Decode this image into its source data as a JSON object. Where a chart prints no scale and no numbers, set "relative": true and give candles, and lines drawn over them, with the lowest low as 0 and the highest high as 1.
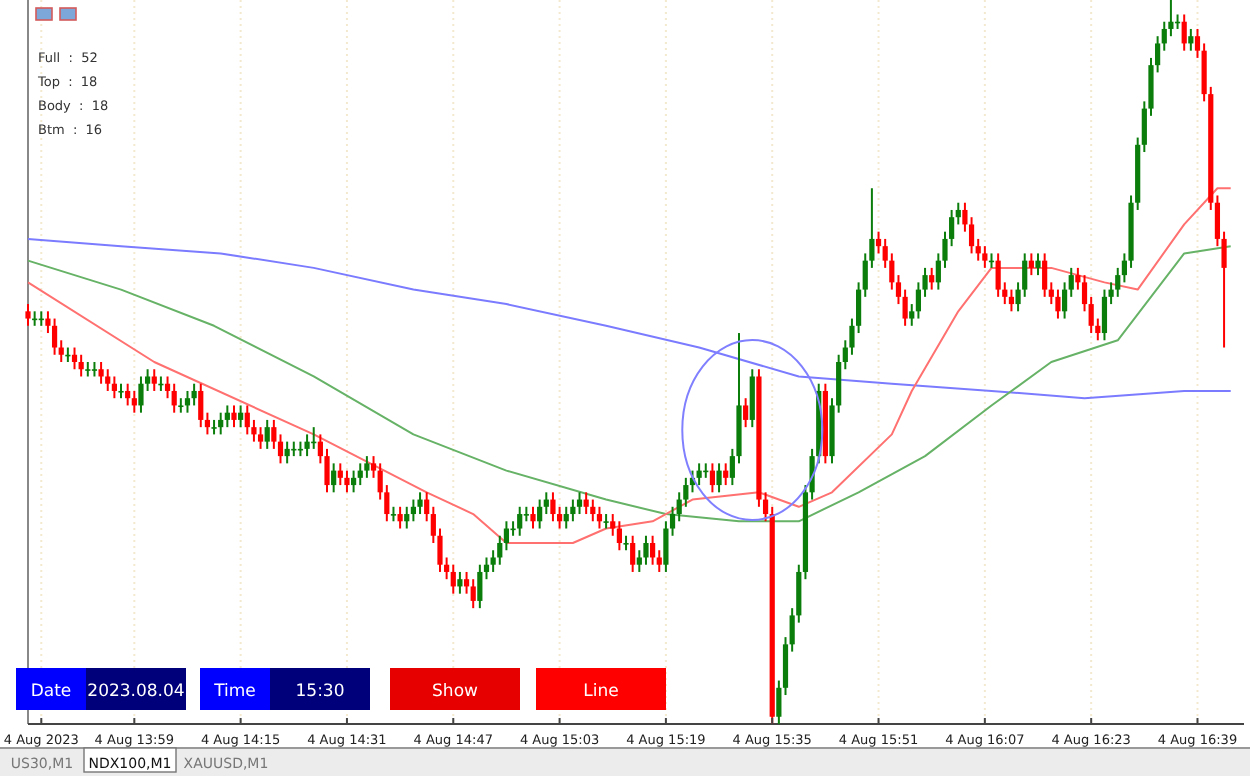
{
  "chart_data": {
    "type": "candlestick",
    "relative": true,
    "grid": "x",
    "tick_labels": "x",
    "annotations": [
      "Full  :  52",
      "Top  :  18",
      "Body  :  18",
      "Btm  :  16",
      "Date",
      "2023.08.04",
      "Time",
      "15:30",
      "Show",
      "Line",
      "US30,M1",
      "NDX100,M1",
      "XAUUSD,M1"
    ],
    "xlim": [
      "2023-08-04T13:43",
      "2023-08-04T16:46"
    ],
    "xticks": [
      {
        "value": "2023-08-04T13:45",
        "label": "4 Aug 2023"
      },
      {
        "value": "2023-08-04T13:59",
        "label": "4 Aug 13:59"
      },
      {
        "value": "2023-08-04T14:15",
        "label": "4 Aug 14:15"
      },
      {
        "value": "2023-08-04T14:31",
        "label": "4 Aug 14:31"
      },
      {
        "value": "2023-08-04T14:47",
        "label": "4 Aug 14:47"
      },
      {
        "value": "2023-08-04T15:03",
        "label": "4 Aug 15:03"
      },
      {
        "value": "2023-08-04T15:19",
        "label": "4 Aug 15:19"
      },
      {
        "value": "2023-08-04T15:35",
        "label": "4 Aug 15:35"
      },
      {
        "value": "2023-08-04T15:51",
        "label": "4 Aug 15:51"
      },
      {
        "value": "2023-08-04T16:07",
        "label": "4 Aug 16:07"
      },
      {
        "value": "2023-08-04T16:23",
        "label": "4 Aug 16:23"
      },
      {
        "value": "2023-08-04T16:39",
        "label": "4 Aug 16:39"
      }
    ],
    "x": [
      "2023-08-04T13:43",
      "2023-08-04T13:44",
      "2023-08-04T13:45",
      "2023-08-04T13:46",
      "2023-08-04T13:47",
      "2023-08-04T13:48",
      "2023-08-04T13:49",
      "2023-08-04T13:50",
      "2023-08-04T13:51",
      "2023-08-04T13:52",
      "2023-08-04T13:53",
      "2023-08-04T13:54",
      "2023-08-04T13:55",
      "2023-08-04T13:56",
      "2023-08-04T13:57",
      "2023-08-04T13:58",
      "2023-08-04T13:59",
      "2023-08-04T14:00",
      "2023-08-04T14:01",
      "2023-08-04T14:02",
      "2023-08-04T14:03",
      "2023-08-04T14:04",
      "2023-08-04T14:05",
      "2023-08-04T14:06",
      "2023-08-04T14:07",
      "2023-08-04T14:08",
      "2023-08-04T14:09",
      "2023-08-04T14:10",
      "2023-08-04T14:11",
      "2023-08-04T14:12",
      "2023-08-04T14:13",
      "2023-08-04T14:14",
      "2023-08-04T14:15",
      "2023-08-04T14:16",
      "2023-08-04T14:17",
      "2023-08-04T14:18",
      "2023-08-04T14:19",
      "2023-08-04T14:20",
      "2023-08-04T14:21",
      "2023-08-04T14:22",
      "2023-08-04T14:23",
      "2023-08-04T14:24",
      "2023-08-04T14:25",
      "2023-08-04T14:26",
      "2023-08-04T14:27",
      "2023-08-04T14:28",
      "2023-08-04T14:29",
      "2023-08-04T14:30",
      "2023-08-04T14:31",
      "2023-08-04T14:32",
      "2023-08-04T14:33",
      "2023-08-04T14:34",
      "2023-08-04T14:35",
      "2023-08-04T14:36",
      "2023-08-04T14:37",
      "2023-08-04T14:38",
      "2023-08-04T14:39",
      "2023-08-04T14:40",
      "2023-08-04T14:41",
      "2023-08-04T14:42",
      "2023-08-04T14:43",
      "2023-08-04T14:44",
      "2023-08-04T14:45",
      "2023-08-04T14:46",
      "2023-08-04T14:47",
      "2023-08-04T14:48",
      "2023-08-04T14:49",
      "2023-08-04T14:50",
      "2023-08-04T14:51",
      "2023-08-04T14:52",
      "2023-08-04T14:53",
      "2023-08-04T14:54",
      "2023-08-04T14:55",
      "2023-08-04T14:56",
      "2023-08-04T14:57",
      "2023-08-04T14:58",
      "2023-08-04T14:59",
      "2023-08-04T15:00",
      "2023-08-04T15:01",
      "2023-08-04T15:02",
      "2023-08-04T15:03",
      "2023-08-04T15:04",
      "2023-08-04T15:05",
      "2023-08-04T15:06",
      "2023-08-04T15:07",
      "2023-08-04T15:08",
      "2023-08-04T15:09",
      "2023-08-04T15:10",
      "2023-08-04T15:11",
      "2023-08-04T15:12",
      "2023-08-04T15:13",
      "2023-08-04T15:14",
      "2023-08-04T15:15",
      "2023-08-04T15:16",
      "2023-08-04T15:17",
      "2023-08-04T15:18",
      "2023-08-04T15:19",
      "2023-08-04T15:20",
      "2023-08-04T15:21",
      "2023-08-04T15:22",
      "2023-08-04T15:23",
      "2023-08-04T15:24",
      "2023-08-04T15:25",
      "2023-08-04T15:26",
      "2023-08-04T15:27",
      "2023-08-04T15:28",
      "2023-08-04T15:29",
      "2023-08-04T15:30",
      "2023-08-04T15:31",
      "2023-08-04T15:32",
      "2023-08-04T15:33",
      "2023-08-04T15:34",
      "2023-08-04T15:35",
      "2023-08-04T15:36",
      "2023-08-04T15:37",
      "2023-08-04T15:38",
      "2023-08-04T15:39",
      "2023-08-04T15:40",
      "2023-08-04T15:41",
      "2023-08-04T15:42",
      "2023-08-04T15:43",
      "2023-08-04T15:44",
      "2023-08-04T15:45",
      "2023-08-04T15:46",
      "2023-08-04T15:47",
      "2023-08-04T15:48",
      "2023-08-04T15:49",
      "2023-08-04T15:50",
      "2023-08-04T15:51",
      "2023-08-04T15:52",
      "2023-08-04T15:53",
      "2023-08-04T15:54",
      "2023-08-04T15:55",
      "2023-08-04T15:56",
      "2023-08-04T15:57",
      "2023-08-04T15:58",
      "2023-08-04T15:59",
      "2023-08-04T16:00",
      "2023-08-04T16:01",
      "2023-08-04T16:02",
      "2023-08-04T16:03",
      "2023-08-04T16:04",
      "2023-08-04T16:05",
      "2023-08-04T16:06",
      "2023-08-04T16:07",
      "2023-08-04T16:08",
      "2023-08-04T16:09",
      "2023-08-04T16:10",
      "2023-08-04T16:11",
      "2023-08-04T16:12",
      "2023-08-04T16:13",
      "2023-08-04T16:14",
      "2023-08-04T16:15",
      "2023-08-04T16:16",
      "2023-08-04T16:17",
      "2023-08-04T16:18",
      "2023-08-04T16:19",
      "2023-08-04T16:20",
      "2023-08-04T16:21",
      "2023-08-04T16:22",
      "2023-08-04T16:23",
      "2023-08-04T16:24",
      "2023-08-04T16:25",
      "2023-08-04T16:26",
      "2023-08-04T16:27",
      "2023-08-04T16:28",
      "2023-08-04T16:29",
      "2023-08-04T16:30",
      "2023-08-04T16:31",
      "2023-08-04T16:32",
      "2023-08-04T16:33",
      "2023-08-04T16:34",
      "2023-08-04T16:35",
      "2023-08-04T16:36",
      "2023-08-04T16:37",
      "2023-08-04T16:38",
      "2023-08-04T16:39",
      "2023-08-04T16:40",
      "2023-08-04T16:41",
      "2023-08-04T16:42",
      "2023-08-04T16:43"
    ],
    "ohlc": [
      [
        0.57,
        0.58,
        0.55,
        0.56
      ],
      [
        0.56,
        0.57,
        0.55,
        0.56
      ],
      [
        0.56,
        0.57,
        0.55,
        0.56
      ],
      [
        0.56,
        0.57,
        0.54,
        0.55
      ],
      [
        0.55,
        0.56,
        0.51,
        0.52
      ],
      [
        0.52,
        0.53,
        0.5,
        0.51
      ],
      [
        0.51,
        0.52,
        0.5,
        0.51
      ],
      [
        0.51,
        0.52,
        0.49,
        0.5
      ],
      [
        0.5,
        0.51,
        0.48,
        0.49
      ],
      [
        0.49,
        0.5,
        0.48,
        0.49
      ],
      [
        0.49,
        0.5,
        0.48,
        0.49
      ],
      [
        0.49,
        0.5,
        0.47,
        0.48
      ],
      [
        0.48,
        0.49,
        0.46,
        0.47
      ],
      [
        0.47,
        0.48,
        0.45,
        0.46
      ],
      [
        0.46,
        0.47,
        0.45,
        0.46
      ],
      [
        0.46,
        0.47,
        0.44,
        0.45
      ],
      [
        0.45,
        0.46,
        0.43,
        0.44
      ],
      [
        0.44,
        0.48,
        0.43,
        0.47
      ],
      [
        0.47,
        0.49,
        0.46,
        0.48
      ],
      [
        0.48,
        0.49,
        0.46,
        0.47
      ],
      [
        0.47,
        0.48,
        0.46,
        0.47
      ],
      [
        0.47,
        0.48,
        0.45,
        0.46
      ],
      [
        0.46,
        0.47,
        0.43,
        0.44
      ],
      [
        0.44,
        0.45,
        0.43,
        0.44
      ],
      [
        0.44,
        0.46,
        0.43,
        0.45
      ],
      [
        0.45,
        0.47,
        0.44,
        0.46
      ],
      [
        0.46,
        0.47,
        0.41,
        0.42
      ],
      [
        0.42,
        0.43,
        0.4,
        0.41
      ],
      [
        0.41,
        0.42,
        0.4,
        0.41
      ],
      [
        0.41,
        0.43,
        0.4,
        0.42
      ],
      [
        0.42,
        0.44,
        0.41,
        0.43
      ],
      [
        0.43,
        0.44,
        0.41,
        0.42
      ],
      [
        0.42,
        0.44,
        0.41,
        0.43
      ],
      [
        0.43,
        0.44,
        0.4,
        0.41
      ],
      [
        0.41,
        0.42,
        0.39,
        0.4
      ],
      [
        0.4,
        0.41,
        0.38,
        0.39
      ],
      [
        0.39,
        0.42,
        0.38,
        0.41
      ],
      [
        0.41,
        0.42,
        0.38,
        0.39
      ],
      [
        0.39,
        0.4,
        0.36,
        0.37
      ],
      [
        0.37,
        0.39,
        0.36,
        0.38
      ],
      [
        0.38,
        0.39,
        0.37,
        0.38
      ],
      [
        0.38,
        0.39,
        0.37,
        0.38
      ],
      [
        0.38,
        0.4,
        0.37,
        0.39
      ],
      [
        0.39,
        0.41,
        0.38,
        0.39
      ],
      [
        0.39,
        0.4,
        0.36,
        0.37
      ],
      [
        0.37,
        0.38,
        0.32,
        0.33
      ],
      [
        0.33,
        0.36,
        0.32,
        0.35
      ],
      [
        0.35,
        0.36,
        0.33,
        0.34
      ],
      [
        0.34,
        0.35,
        0.32,
        0.33
      ],
      [
        0.33,
        0.35,
        0.32,
        0.34
      ],
      [
        0.34,
        0.36,
        0.33,
        0.35
      ],
      [
        0.35,
        0.37,
        0.34,
        0.36
      ],
      [
        0.36,
        0.37,
        0.34,
        0.35
      ],
      [
        0.35,
        0.36,
        0.31,
        0.32
      ],
      [
        0.32,
        0.33,
        0.28,
        0.29
      ],
      [
        0.29,
        0.3,
        0.28,
        0.29
      ],
      [
        0.29,
        0.3,
        0.27,
        0.28
      ],
      [
        0.28,
        0.3,
        0.27,
        0.29
      ],
      [
        0.29,
        0.31,
        0.28,
        0.3
      ],
      [
        0.3,
        0.32,
        0.29,
        0.31
      ],
      [
        0.31,
        0.32,
        0.28,
        0.29
      ],
      [
        0.29,
        0.3,
        0.25,
        0.26
      ],
      [
        0.26,
        0.27,
        0.21,
        0.22
      ],
      [
        0.22,
        0.23,
        0.2,
        0.21
      ],
      [
        0.21,
        0.22,
        0.18,
        0.19
      ],
      [
        0.19,
        0.21,
        0.18,
        0.2
      ],
      [
        0.2,
        0.21,
        0.18,
        0.19
      ],
      [
        0.19,
        0.2,
        0.16,
        0.17
      ],
      [
        0.17,
        0.22,
        0.16,
        0.21
      ],
      [
        0.21,
        0.23,
        0.2,
        0.22
      ],
      [
        0.22,
        0.24,
        0.21,
        0.23
      ],
      [
        0.23,
        0.26,
        0.22,
        0.25
      ],
      [
        0.25,
        0.28,
        0.24,
        0.27
      ],
      [
        0.27,
        0.28,
        0.26,
        0.27
      ],
      [
        0.27,
        0.3,
        0.26,
        0.29
      ],
      [
        0.29,
        0.3,
        0.28,
        0.29
      ],
      [
        0.29,
        0.3,
        0.27,
        0.28
      ],
      [
        0.28,
        0.31,
        0.27,
        0.3
      ],
      [
        0.3,
        0.32,
        0.29,
        0.31
      ],
      [
        0.31,
        0.32,
        0.28,
        0.29
      ],
      [
        0.29,
        0.3,
        0.27,
        0.28
      ],
      [
        0.28,
        0.3,
        0.27,
        0.29
      ],
      [
        0.29,
        0.31,
        0.28,
        0.3
      ],
      [
        0.3,
        0.32,
        0.29,
        0.31
      ],
      [
        0.31,
        0.32,
        0.29,
        0.3
      ],
      [
        0.3,
        0.31,
        0.28,
        0.29
      ],
      [
        0.29,
        0.3,
        0.27,
        0.28
      ],
      [
        0.28,
        0.29,
        0.27,
        0.28
      ],
      [
        0.28,
        0.29,
        0.26,
        0.27
      ],
      [
        0.27,
        0.28,
        0.24,
        0.25
      ],
      [
        0.25,
        0.26,
        0.24,
        0.25
      ],
      [
        0.25,
        0.26,
        0.21,
        0.22
      ],
      [
        0.22,
        0.24,
        0.21,
        0.23
      ],
      [
        0.23,
        0.26,
        0.22,
        0.25
      ],
      [
        0.25,
        0.26,
        0.22,
        0.23
      ],
      [
        0.23,
        0.24,
        0.21,
        0.22
      ],
      [
        0.22,
        0.28,
        0.21,
        0.27
      ],
      [
        0.27,
        0.3,
        0.26,
        0.29
      ],
      [
        0.29,
        0.32,
        0.28,
        0.31
      ],
      [
        0.31,
        0.34,
        0.3,
        0.33
      ],
      [
        0.33,
        0.35,
        0.32,
        0.34
      ],
      [
        0.34,
        0.36,
        0.33,
        0.35
      ],
      [
        0.35,
        0.36,
        0.34,
        0.35
      ],
      [
        0.35,
        0.36,
        0.32,
        0.33
      ],
      [
        0.33,
        0.36,
        0.32,
        0.35
      ],
      [
        0.35,
        0.36,
        0.33,
        0.34
      ],
      [
        0.34,
        0.38,
        0.33,
        0.37
      ],
      [
        0.37,
        0.54,
        0.36,
        0.44
      ],
      [
        0.44,
        0.45,
        0.41,
        0.42
      ],
      [
        0.42,
        0.49,
        0.41,
        0.48
      ],
      [
        0.48,
        0.49,
        0.3,
        0.31
      ],
      [
        0.31,
        0.32,
        0.28,
        0.29
      ],
      [
        0.29,
        0.3,
        0,
        0.01
      ],
      [
        0.01,
        0.06,
        0,
        0.05
      ],
      [
        0.05,
        0.12,
        0.04,
        0.11
      ],
      [
        0.11,
        0.16,
        0.1,
        0.15
      ],
      [
        0.15,
        0.22,
        0.14,
        0.21
      ],
      [
        0.21,
        0.33,
        0.2,
        0.32
      ],
      [
        0.32,
        0.38,
        0.31,
        0.37
      ],
      [
        0.37,
        0.47,
        0.36,
        0.46
      ],
      [
        0.46,
        0.47,
        0.36,
        0.37
      ],
      [
        0.37,
        0.45,
        0.36,
        0.44
      ],
      [
        0.44,
        0.51,
        0.43,
        0.5
      ],
      [
        0.5,
        0.53,
        0.49,
        0.52
      ],
      [
        0.52,
        0.56,
        0.51,
        0.55
      ],
      [
        0.55,
        0.61,
        0.54,
        0.6
      ],
      [
        0.6,
        0.65,
        0.59,
        0.64
      ],
      [
        0.64,
        0.74,
        0.63,
        0.67
      ],
      [
        0.67,
        0.68,
        0.65,
        0.66
      ],
      [
        0.66,
        0.67,
        0.63,
        0.64
      ],
      [
        0.64,
        0.65,
        0.6,
        0.61
      ],
      [
        0.61,
        0.62,
        0.58,
        0.59
      ],
      [
        0.59,
        0.6,
        0.55,
        0.56
      ],
      [
        0.56,
        0.58,
        0.55,
        0.57
      ],
      [
        0.57,
        0.61,
        0.56,
        0.6
      ],
      [
        0.6,
        0.63,
        0.59,
        0.62
      ],
      [
        0.62,
        0.63,
        0.6,
        0.61
      ],
      [
        0.61,
        0.65,
        0.6,
        0.64
      ],
      [
        0.64,
        0.68,
        0.63,
        0.67
      ],
      [
        0.67,
        0.71,
        0.66,
        0.7
      ],
      [
        0.7,
        0.72,
        0.69,
        0.71
      ],
      [
        0.71,
        0.72,
        0.68,
        0.69
      ],
      [
        0.69,
        0.7,
        0.65,
        0.66
      ],
      [
        0.66,
        0.67,
        0.64,
        0.65
      ],
      [
        0.65,
        0.66,
        0.63,
        0.64
      ],
      [
        0.64,
        0.65,
        0.63,
        0.64
      ],
      [
        0.64,
        0.65,
        0.59,
        0.6
      ],
      [
        0.6,
        0.61,
        0.58,
        0.59
      ],
      [
        0.59,
        0.6,
        0.57,
        0.58
      ],
      [
        0.58,
        0.61,
        0.57,
        0.6
      ],
      [
        0.6,
        0.65,
        0.59,
        0.64
      ],
      [
        0.64,
        0.65,
        0.62,
        0.63
      ],
      [
        0.63,
        0.65,
        0.62,
        0.64
      ],
      [
        0.64,
        0.65,
        0.59,
        0.6
      ],
      [
        0.6,
        0.61,
        0.58,
        0.59
      ],
      [
        0.59,
        0.6,
        0.56,
        0.57
      ],
      [
        0.57,
        0.61,
        0.56,
        0.6
      ],
      [
        0.6,
        0.63,
        0.59,
        0.62
      ],
      [
        0.62,
        0.63,
        0.6,
        0.61
      ],
      [
        0.61,
        0.62,
        0.57,
        0.58
      ],
      [
        0.58,
        0.59,
        0.54,
        0.55
      ],
      [
        0.55,
        0.56,
        0.53,
        0.54
      ],
      [
        0.54,
        0.6,
        0.53,
        0.59
      ],
      [
        0.59,
        0.61,
        0.58,
        0.6
      ],
      [
        0.6,
        0.63,
        0.59,
        0.62
      ],
      [
        0.62,
        0.65,
        0.61,
        0.64
      ],
      [
        0.64,
        0.73,
        0.63,
        0.72
      ],
      [
        0.72,
        0.81,
        0.71,
        0.8
      ],
      [
        0.8,
        0.86,
        0.79,
        0.85
      ],
      [
        0.85,
        0.92,
        0.84,
        0.91
      ],
      [
        0.91,
        0.95,
        0.9,
        0.94
      ],
      [
        0.94,
        0.97,
        0.93,
        0.96
      ],
      [
        0.96,
        1,
        0.95,
        0.97
      ],
      [
        0.97,
        0.98,
        0.96,
        0.97
      ],
      [
        0.97,
        0.98,
        0.93,
        0.94
      ],
      [
        0.94,
        0.96,
        0.93,
        0.95
      ],
      [
        0.95,
        0.96,
        0.92,
        0.93
      ],
      [
        0.93,
        0.94,
        0.86,
        0.87
      ],
      [
        0.87,
        0.88,
        0.71,
        0.72
      ],
      [
        0.72,
        0.73,
        0.66,
        0.67
      ],
      [
        0.67,
        0.68,
        0.52,
        0.63
      ]
    ],
    "series": [
      {
        "type": "line",
        "color": "#7b7bff",
        "x": [
          "2023-08-04T13:43",
          "2023-08-04T13:57",
          "2023-08-04T14:12",
          "2023-08-04T14:26",
          "2023-08-04T14:41",
          "2023-08-04T14:55",
          "2023-08-04T15:10",
          "2023-08-04T15:24",
          "2023-08-04T15:39",
          "2023-08-04T15:53",
          "2023-08-04T16:08",
          "2023-08-04T16:22",
          "2023-08-04T16:37",
          "2023-08-04T16:44"
        ],
        "values": [
          0.67,
          0.66,
          0.65,
          0.63,
          0.6,
          0.58,
          0.55,
          0.52,
          0.48,
          0.47,
          0.46,
          0.45,
          0.46,
          0.46
        ]
      },
      {
        "type": "line",
        "color": "#66b266",
        "x": [
          "2023-08-04T13:43",
          "2023-08-04T13:57",
          "2023-08-04T14:11",
          "2023-08-04T14:26",
          "2023-08-04T14:41",
          "2023-08-04T14:55",
          "2023-08-04T15:10",
          "2023-08-04T15:19",
          "2023-08-04T15:30",
          "2023-08-04T15:39",
          "2023-08-04T15:48",
          "2023-08-04T15:58",
          "2023-08-04T16:08",
          "2023-08-04T16:17",
          "2023-08-04T16:27",
          "2023-08-04T16:37",
          "2023-08-04T16:44"
        ],
        "values": [
          0.64,
          0.6,
          0.55,
          0.48,
          0.4,
          0.35,
          0.31,
          0.29,
          0.28,
          0.28,
          0.32,
          0.37,
          0.44,
          0.5,
          0.53,
          0.65,
          0.66
        ]
      },
      {
        "type": "line",
        "color": "#ff7070",
        "x": [
          "2023-08-04T13:43",
          "2023-08-04T14:02",
          "2023-08-04T14:26",
          "2023-08-04T14:43",
          "2023-08-04T14:50",
          "2023-08-04T14:55",
          "2023-08-04T15:05",
          "2023-08-04T15:10",
          "2023-08-04T15:17",
          "2023-08-04T15:23",
          "2023-08-04T15:33",
          "2023-08-04T15:39",
          "2023-08-04T15:44",
          "2023-08-04T15:53",
          "2023-08-04T15:56",
          "2023-08-04T16:03",
          "2023-08-04T16:08",
          "2023-08-04T16:17",
          "2023-08-04T16:25",
          "2023-08-04T16:30",
          "2023-08-04T16:37",
          "2023-08-04T16:42",
          "2023-08-04T16:44"
        ],
        "values": [
          0.61,
          0.5,
          0.4,
          0.32,
          0.29,
          0.25,
          0.25,
          0.27,
          0.28,
          0.31,
          0.32,
          0.3,
          0.32,
          0.4,
          0.46,
          0.57,
          0.63,
          0.63,
          0.61,
          0.6,
          0.69,
          0.74,
          0.74
        ]
      }
    ]
  }
}
